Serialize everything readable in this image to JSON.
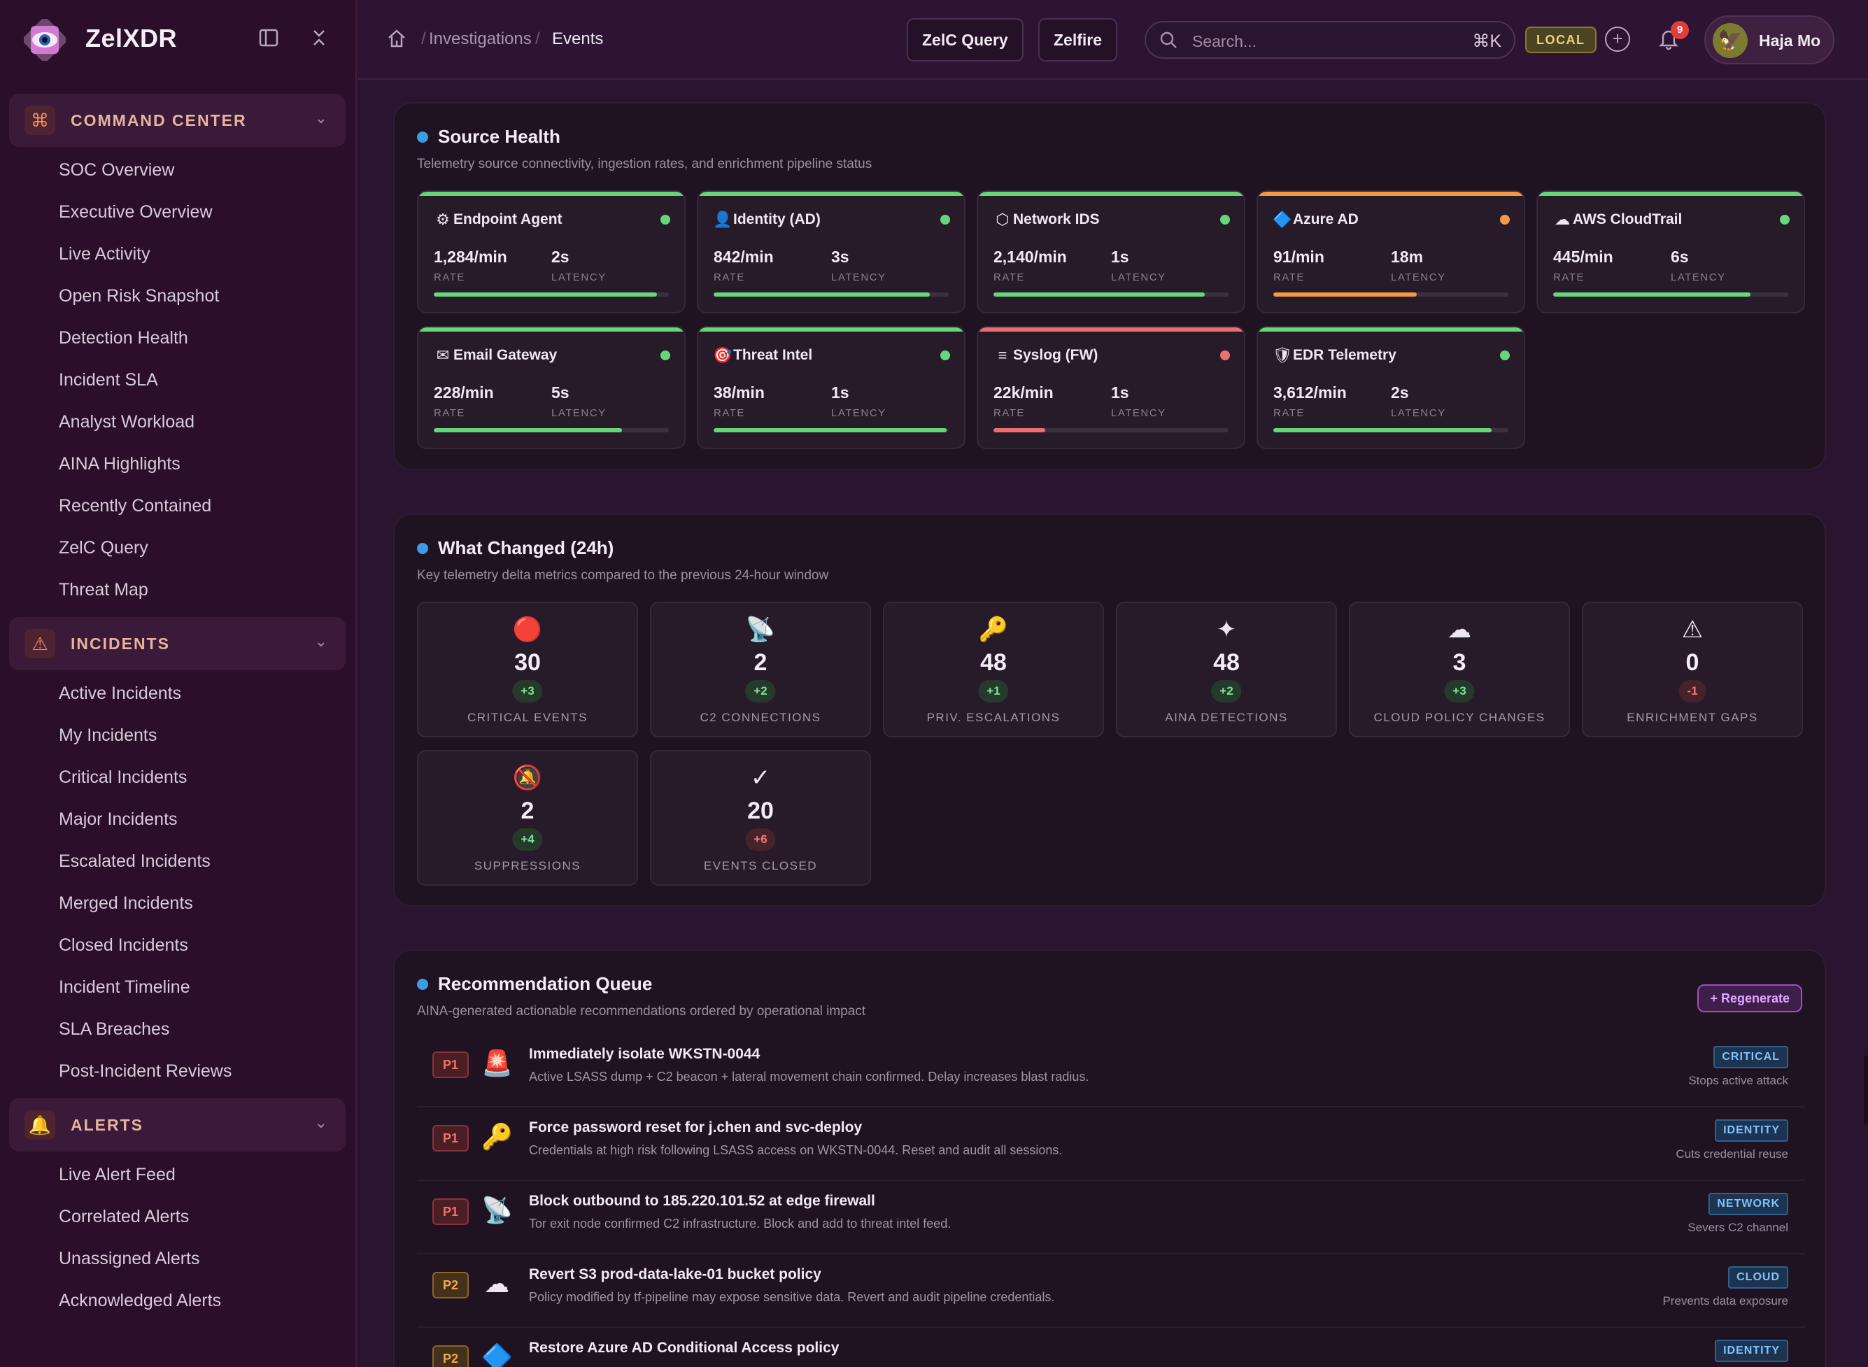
{
  "brand": {
    "name": "ZelXDR"
  },
  "sidebar": {
    "groups": [
      {
        "title": "COMMAND CENTER",
        "icon": "command-icon",
        "items": [
          "SOC Overview",
          "Executive Overview",
          "Live Activity",
          "Open Risk Snapshot",
          "Detection Health",
          "Incident SLA",
          "Analyst Workload",
          "AINA Highlights",
          "Recently Contained",
          "ZelC Query",
          "Threat Map"
        ]
      },
      {
        "title": "INCIDENTS",
        "icon": "warning-icon",
        "items": [
          "Active Incidents",
          "My Incidents",
          "Critical Incidents",
          "Major Incidents",
          "Escalated Incidents",
          "Merged Incidents",
          "Closed Incidents",
          "Incident Timeline",
          "SLA Breaches",
          "Post-Incident Reviews"
        ]
      },
      {
        "title": "ALERTS",
        "icon": "bell-icon",
        "items": [
          "Live Alert Feed",
          "Correlated Alerts",
          "Unassigned Alerts",
          "Acknowledged Alerts"
        ]
      }
    ]
  },
  "topbar": {
    "breadcrumb": [
      "Investigations",
      "Events"
    ],
    "buttons": [
      "ZelC Query",
      "Zelfire"
    ],
    "search": {
      "placeholder": "Search...",
      "shortcut": "⌘K"
    },
    "env_badge": "LOCAL",
    "notifications": "9",
    "user": "Haja Mo"
  },
  "source_health": {
    "title": "Source Health",
    "subtitle": "Telemetry source connectivity, ingestion rates, and enrichment pipeline status",
    "rate_label": "RATE",
    "latency_label": "LATENCY",
    "sources": [
      {
        "name": "Endpoint Agent",
        "icon": "gear-icon",
        "glyph": "⚙",
        "rate": "1,284/min",
        "latency": "2s",
        "status": "healthy",
        "health": 0.95,
        "color": "#66d67a"
      },
      {
        "name": "Identity (AD)",
        "icon": "user-icon",
        "glyph": "👤",
        "rate": "842/min",
        "latency": "3s",
        "status": "healthy",
        "health": 0.92,
        "color": "#66d67a"
      },
      {
        "name": "Network IDS",
        "icon": "hexagon-icon",
        "glyph": "⬡",
        "rate": "2,140/min",
        "latency": "1s",
        "status": "healthy",
        "health": 0.9,
        "color": "#66d67a"
      },
      {
        "name": "Azure AD",
        "icon": "diamond-icon",
        "glyph": "🔷",
        "rate": "91/min",
        "latency": "18m",
        "status": "degraded",
        "health": 0.61,
        "color": "#f29a43"
      },
      {
        "name": "AWS CloudTrail",
        "icon": "cloud-icon",
        "glyph": "☁",
        "rate": "445/min",
        "latency": "6s",
        "status": "healthy",
        "health": 0.84,
        "color": "#66d67a"
      },
      {
        "name": "Email Gateway",
        "icon": "mail-icon",
        "glyph": "✉",
        "rate": "228/min",
        "latency": "5s",
        "status": "healthy",
        "health": 0.8,
        "color": "#66d67a"
      },
      {
        "name": "Threat Intel",
        "icon": "target-icon",
        "glyph": "🎯",
        "rate": "38/min",
        "latency": "1s",
        "status": "healthy",
        "health": 0.99,
        "color": "#66d67a"
      },
      {
        "name": "Syslog (FW)",
        "icon": "list-icon",
        "glyph": "≡",
        "rate": "22k/min",
        "latency": "1s",
        "status": "down",
        "health": 0.22,
        "color": "#ec6f6f"
      },
      {
        "name": "EDR Telemetry",
        "icon": "shield-icon",
        "glyph": "🛡",
        "rate": "3,612/min",
        "latency": "2s",
        "status": "healthy",
        "health": 0.93,
        "color": "#66d67a"
      }
    ]
  },
  "what_changed": {
    "title": "What Changed (24h)",
    "subtitle": "Key telemetry delta metrics compared to the previous 24-hour window",
    "metrics": [
      {
        "label": "CRITICAL EVENTS",
        "icon": "red-circle-icon",
        "glyph": "🔴",
        "value": "30",
        "change": "+3",
        "dir": "up"
      },
      {
        "label": "C2 CONNECTIONS",
        "icon": "satellite-icon",
        "glyph": "📡",
        "value": "2",
        "change": "+2",
        "dir": "up"
      },
      {
        "label": "PRIV. ESCALATIONS",
        "icon": "key-icon",
        "glyph": "🔑",
        "value": "48",
        "change": "+1",
        "dir": "up"
      },
      {
        "label": "AINA DETECTIONS",
        "icon": "sparkle-icon",
        "glyph": "✦",
        "value": "48",
        "change": "+2",
        "dir": "up"
      },
      {
        "label": "CLOUD POLICY CHANGES",
        "icon": "cloud-icon",
        "glyph": "☁",
        "value": "3",
        "change": "+3",
        "dir": "up"
      },
      {
        "label": "ENRICHMENT GAPS",
        "icon": "warning-icon",
        "glyph": "⚠",
        "value": "0",
        "change": "-1",
        "dir": "down"
      },
      {
        "label": "SUPPRESSIONS",
        "icon": "muted-bell-icon",
        "glyph": "🔕",
        "value": "2",
        "change": "+4",
        "dir": "up"
      },
      {
        "label": "EVENTS CLOSED",
        "icon": "check-icon",
        "glyph": "✓",
        "value": "20",
        "change": "+6",
        "dir": "down"
      }
    ]
  },
  "recommendations": {
    "title": "Recommendation Queue",
    "subtitle": "AINA-generated actionable recommendations ordered by operational impact",
    "regenerate_label": "+ Regenerate",
    "items": [
      {
        "priority": "P1",
        "icon": "siren-icon",
        "glyph": "🚨",
        "title": "Immediately isolate WKSTN-0044",
        "desc": "Active LSASS dump + C2 beacon + lateral movement chain confirmed. Delay increases blast radius.",
        "tag": "CRITICAL",
        "impact": "Stops active attack"
      },
      {
        "priority": "P1",
        "icon": "key-icon",
        "glyph": "🔑",
        "title": "Force password reset for j.chen and svc-deploy",
        "desc": "Credentials at high risk following LSASS access on WKSTN-0044. Reset and audit all sessions.",
        "tag": "IDENTITY",
        "impact": "Cuts credential reuse"
      },
      {
        "priority": "P1",
        "icon": "satellite-icon",
        "glyph": "📡",
        "title": "Block outbound to 185.220.101.52 at edge firewall",
        "desc": "Tor exit node confirmed C2 infrastructure. Block and add to threat intel feed.",
        "tag": "NETWORK",
        "impact": "Severs C2 channel"
      },
      {
        "priority": "P2",
        "icon": "cloud-icon",
        "glyph": "☁",
        "title": "Revert S3 prod-data-lake-01 bucket policy",
        "desc": "Policy modified by tf-pipeline may expose sensitive data. Revert and audit pipeline credentials.",
        "tag": "CLOUD",
        "impact": "Prevents data exposure"
      },
      {
        "priority": "P2",
        "icon": "diamond-icon",
        "glyph": "🔷",
        "title": "Restore Azure AD Conditional Access policy",
        "desc": "",
        "tag": "IDENTITY",
        "impact": ""
      }
    ]
  }
}
